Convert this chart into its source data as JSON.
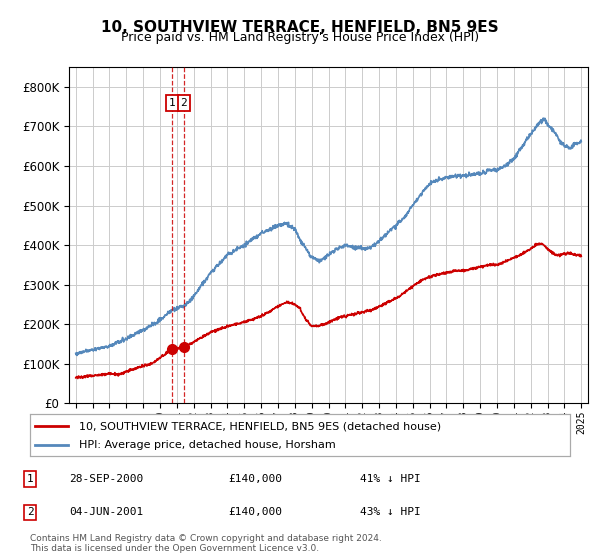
{
  "title": "10, SOUTHVIEW TERRACE, HENFIELD, BN5 9ES",
  "subtitle": "Price paid vs. HM Land Registry's House Price Index (HPI)",
  "legend_label_red": "10, SOUTHVIEW TERRACE, HENFIELD, BN5 9ES (detached house)",
  "legend_label_blue": "HPI: Average price, detached house, Horsham",
  "transactions": [
    {
      "num": 1,
      "date": "28-SEP-2000",
      "price": 140000,
      "hpi_diff": "41% ↓ HPI",
      "x_year": 2000.74
    },
    {
      "num": 2,
      "date": "04-JUN-2001",
      "price": 140000,
      "hpi_diff": "43% ↓ HPI",
      "x_year": 2001.42
    }
  ],
  "footer": "Contains HM Land Registry data © Crown copyright and database right 2024.\nThis data is licensed under the Open Government Licence v3.0.",
  "ylim": [
    0,
    850000
  ],
  "yticks": [
    0,
    100000,
    200000,
    300000,
    400000,
    500000,
    600000,
    700000,
    800000
  ],
  "red_color": "#cc0000",
  "blue_color": "#5588bb",
  "vline_color": "#cc0000",
  "dot_color": "#cc0000",
  "background_color": "#ffffff",
  "grid_color": "#cccccc",
  "xlim_left": 1994.6,
  "xlim_right": 2025.4
}
